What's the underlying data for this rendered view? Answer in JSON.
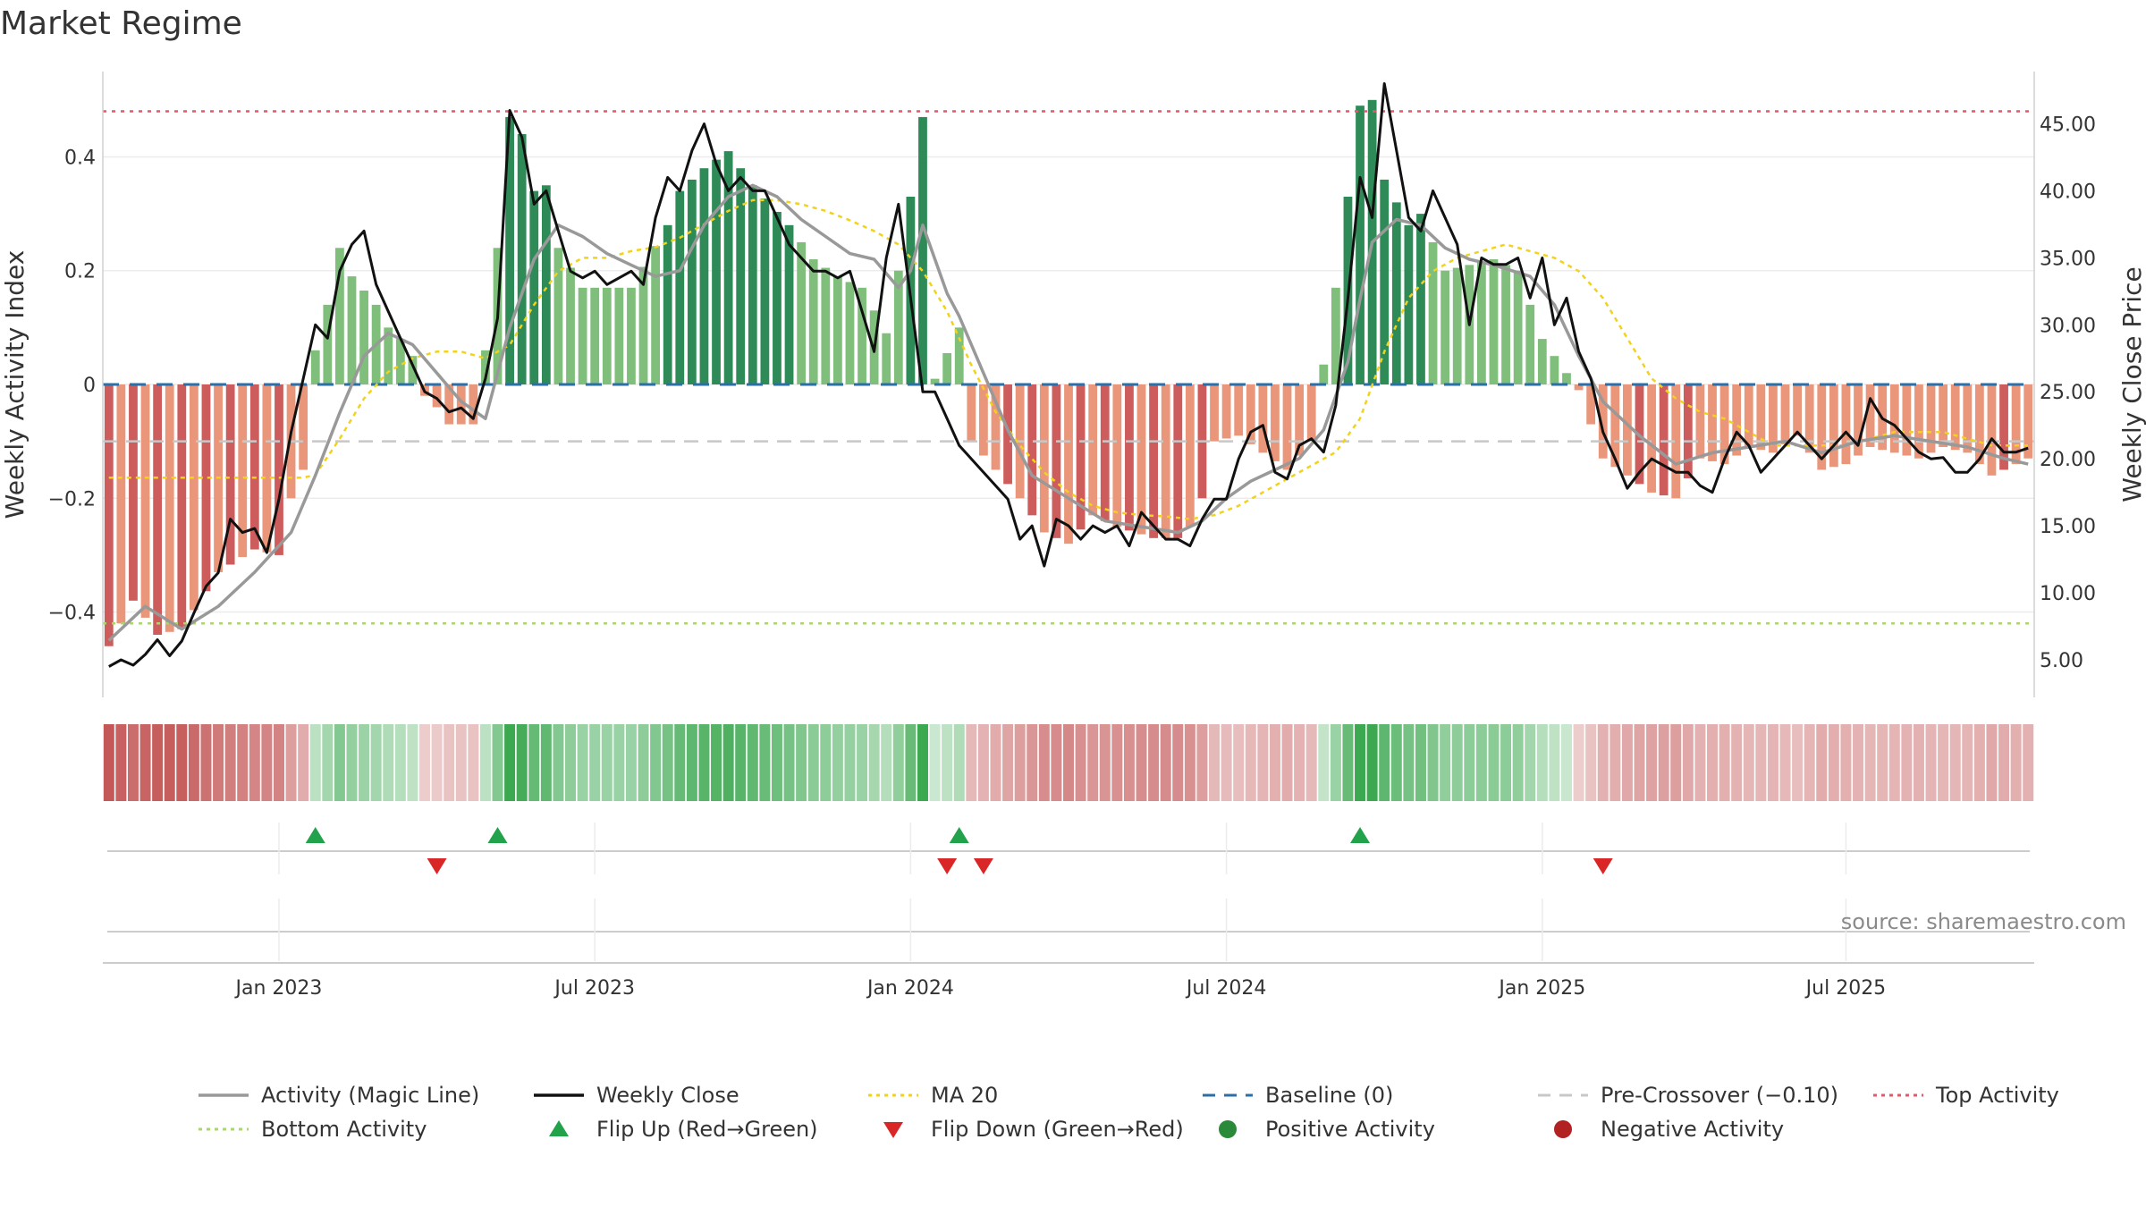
{
  "chart_data": {
    "type": "bar",
    "title": "Market Regime",
    "ylabel_left": "Weekly Activity Index",
    "ylabel_right": "Weekly Close Price",
    "source": "source: sharemaestro.com",
    "left_yticks": [
      {
        "v": 0.4,
        "label": "0.4"
      },
      {
        "v": 0.2,
        "label": "0.2"
      },
      {
        "v": 0,
        "label": "0"
      },
      {
        "v": -0.2,
        "label": "−0.2"
      },
      {
        "v": -0.4,
        "label": "−0.4"
      }
    ],
    "right_yticks": [
      "5.00",
      "10.00",
      "15.00",
      "20.00",
      "25.00",
      "30.00",
      "35.00",
      "40.00",
      "45.00"
    ],
    "x_ticks": [
      {
        "week": 14,
        "label": "Jan 2023"
      },
      {
        "week": 40,
        "label": "Jul 2023"
      },
      {
        "week": 66,
        "label": "Jan 2024"
      },
      {
        "week": 92,
        "label": "Jul 2024"
      },
      {
        "week": 118,
        "label": "Jan 2025"
      },
      {
        "week": 143,
        "label": "Jul 2025"
      }
    ],
    "ylim_left": [
      -0.55,
      0.55
    ],
    "ylim_right": [
      2.2,
      48.9
    ],
    "reference_lines": {
      "baseline": 0,
      "pre_crossover": -0.1,
      "top_activity": 0.48,
      "bottom_activity": -0.42
    },
    "activity_anchors": [
      [
        0,
        -0.46
      ],
      [
        2,
        -0.38
      ],
      [
        4,
        -0.44
      ],
      [
        6,
        -0.43
      ],
      [
        9,
        -0.33
      ],
      [
        12,
        -0.29
      ],
      [
        14,
        -0.3
      ],
      [
        15,
        -0.2
      ],
      [
        16,
        -0.15
      ],
      [
        17,
        0.06
      ],
      [
        18,
        0.14
      ],
      [
        19,
        0.24
      ],
      [
        20,
        0.19
      ],
      [
        22,
        0.14
      ],
      [
        23,
        0.1
      ],
      [
        24,
        0.08
      ],
      [
        25,
        0.05
      ],
      [
        26,
        -0.02
      ],
      [
        27,
        -0.04
      ],
      [
        28,
        -0.07
      ],
      [
        30,
        -0.07
      ],
      [
        31,
        0.06
      ],
      [
        32,
        0.24
      ],
      [
        33,
        0.47
      ],
      [
        34,
        0.44
      ],
      [
        35,
        0.34
      ],
      [
        36,
        0.35
      ],
      [
        37,
        0.24
      ],
      [
        39,
        0.17
      ],
      [
        40,
        0.17
      ],
      [
        43,
        0.17
      ],
      [
        46,
        0.28
      ],
      [
        47,
        0.34
      ],
      [
        49,
        0.38
      ],
      [
        51,
        0.41
      ],
      [
        53,
        0.35
      ],
      [
        56,
        0.28
      ],
      [
        58,
        0.22
      ],
      [
        60,
        0.19
      ],
      [
        62,
        0.17
      ],
      [
        64,
        0.09
      ],
      [
        65,
        0.2
      ],
      [
        66,
        0.33
      ],
      [
        67,
        0.47
      ],
      [
        68,
        0.01
      ],
      [
        70,
        0.1
      ],
      [
        71,
        -0.1
      ],
      [
        73,
        -0.15
      ],
      [
        75,
        -0.2
      ],
      [
        77,
        -0.26
      ],
      [
        79,
        -0.28
      ],
      [
        81,
        -0.23
      ],
      [
        83,
        -0.25
      ],
      [
        86,
        -0.27
      ],
      [
        88,
        -0.27
      ],
      [
        89,
        -0.25
      ],
      [
        90,
        -0.2
      ],
      [
        91,
        -0.1
      ],
      [
        93,
        -0.09
      ],
      [
        95,
        -0.12
      ],
      [
        97,
        -0.15
      ],
      [
        99,
        -0.1
      ],
      [
        101,
        0.17
      ],
      [
        102,
        0.33
      ],
      [
        103,
        0.49
      ],
      [
        104,
        0.5
      ],
      [
        105,
        0.36
      ],
      [
        107,
        0.28
      ],
      [
        108,
        0.3
      ],
      [
        110,
        0.2
      ],
      [
        112,
        0.21
      ],
      [
        114,
        0.22
      ],
      [
        116,
        0.2
      ],
      [
        118,
        0.08
      ],
      [
        119,
        0.05
      ],
      [
        120,
        0.02
      ],
      [
        121,
        -0.01
      ],
      [
        123,
        -0.13
      ],
      [
        125,
        -0.16
      ],
      [
        127,
        -0.19
      ],
      [
        129,
        -0.2
      ],
      [
        131,
        -0.13
      ],
      [
        133,
        -0.14
      ],
      [
        135,
        -0.11
      ],
      [
        137,
        -0.12
      ],
      [
        139,
        -0.09
      ],
      [
        141,
        -0.15
      ],
      [
        143,
        -0.14
      ],
      [
        145,
        -0.11
      ],
      [
        147,
        -0.12
      ],
      [
        149,
        -0.13
      ],
      [
        151,
        -0.11
      ],
      [
        153,
        -0.12
      ],
      [
        155,
        -0.16
      ],
      [
        157,
        -0.14
      ],
      [
        158,
        -0.13
      ]
    ],
    "magic_line_anchors": [
      [
        0,
        -0.45
      ],
      [
        3,
        -0.39
      ],
      [
        6,
        -0.43
      ],
      [
        9,
        -0.39
      ],
      [
        12,
        -0.33
      ],
      [
        15,
        -0.26
      ],
      [
        17,
        -0.16
      ],
      [
        19,
        -0.05
      ],
      [
        21,
        0.05
      ],
      [
        23,
        0.09
      ],
      [
        25,
        0.07
      ],
      [
        27,
        0.02
      ],
      [
        29,
        -0.03
      ],
      [
        31,
        -0.06
      ],
      [
        33,
        0.1
      ],
      [
        35,
        0.22
      ],
      [
        37,
        0.28
      ],
      [
        39,
        0.26
      ],
      [
        41,
        0.23
      ],
      [
        43,
        0.21
      ],
      [
        45,
        0.19
      ],
      [
        47,
        0.2
      ],
      [
        49,
        0.28
      ],
      [
        51,
        0.33
      ],
      [
        53,
        0.35
      ],
      [
        55,
        0.33
      ],
      [
        57,
        0.29
      ],
      [
        59,
        0.26
      ],
      [
        61,
        0.23
      ],
      [
        63,
        0.22
      ],
      [
        65,
        0.17
      ],
      [
        66,
        0.2
      ],
      [
        67,
        0.28
      ],
      [
        68,
        0.22
      ],
      [
        69,
        0.16
      ],
      [
        70,
        0.12
      ],
      [
        72,
        0.02
      ],
      [
        74,
        -0.08
      ],
      [
        76,
        -0.16
      ],
      [
        79,
        -0.2
      ],
      [
        82,
        -0.24
      ],
      [
        85,
        -0.25
      ],
      [
        88,
        -0.26
      ],
      [
        90,
        -0.24
      ],
      [
        92,
        -0.2
      ],
      [
        94,
        -0.17
      ],
      [
        96,
        -0.15
      ],
      [
        98,
        -0.13
      ],
      [
        100,
        -0.08
      ],
      [
        102,
        0.04
      ],
      [
        103,
        0.15
      ],
      [
        104,
        0.25
      ],
      [
        106,
        0.29
      ],
      [
        108,
        0.28
      ],
      [
        110,
        0.24
      ],
      [
        112,
        0.22
      ],
      [
        114,
        0.21
      ],
      [
        117,
        0.19
      ],
      [
        119,
        0.14
      ],
      [
        121,
        0.05
      ],
      [
        123,
        -0.03
      ],
      [
        126,
        -0.09
      ],
      [
        129,
        -0.14
      ],
      [
        132,
        -0.12
      ],
      [
        135,
        -0.11
      ],
      [
        138,
        -0.1
      ],
      [
        141,
        -0.12
      ],
      [
        144,
        -0.1
      ],
      [
        147,
        -0.09
      ],
      [
        150,
        -0.1
      ],
      [
        153,
        -0.11
      ],
      [
        156,
        -0.13
      ],
      [
        158,
        -0.14
      ]
    ],
    "weekly_close_anchors": [
      [
        0,
        4.5
      ],
      [
        1,
        5
      ],
      [
        2,
        4.6
      ],
      [
        3,
        5.4
      ],
      [
        4,
        6.5
      ],
      [
        5,
        5.3
      ],
      [
        6,
        6.4
      ],
      [
        7,
        8.5
      ],
      [
        8,
        10.5
      ],
      [
        9,
        11.5
      ],
      [
        10,
        15.5
      ],
      [
        11,
        14.5
      ],
      [
        12,
        14.8
      ],
      [
        13,
        13
      ],
      [
        14,
        17
      ],
      [
        15,
        22
      ],
      [
        16,
        26
      ],
      [
        17,
        30
      ],
      [
        18,
        29
      ],
      [
        19,
        34
      ],
      [
        20,
        36
      ],
      [
        21,
        37
      ],
      [
        22,
        33
      ],
      [
        23,
        31
      ],
      [
        24,
        29
      ],
      [
        25,
        27
      ],
      [
        26,
        25
      ],
      [
        27,
        24.5
      ],
      [
        28,
        23.5
      ],
      [
        29,
        23.8
      ],
      [
        30,
        23
      ],
      [
        31,
        26
      ],
      [
        32,
        30.5
      ],
      [
        33,
        46
      ],
      [
        34,
        44
      ],
      [
        35,
        39
      ],
      [
        36,
        40
      ],
      [
        37,
        37
      ],
      [
        38,
        34
      ],
      [
        39,
        33.5
      ],
      [
        40,
        34
      ],
      [
        41,
        33
      ],
      [
        42,
        33.5
      ],
      [
        43,
        34
      ],
      [
        44,
        33
      ],
      [
        45,
        38
      ],
      [
        46,
        41
      ],
      [
        47,
        40
      ],
      [
        48,
        43
      ],
      [
        49,
        45
      ],
      [
        50,
        42
      ],
      [
        51,
        40
      ],
      [
        52,
        41
      ],
      [
        53,
        40
      ],
      [
        54,
        40
      ],
      [
        55,
        38
      ],
      [
        56,
        36
      ],
      [
        57,
        35
      ],
      [
        58,
        34
      ],
      [
        59,
        34
      ],
      [
        60,
        33.5
      ],
      [
        61,
        34
      ],
      [
        62,
        31
      ],
      [
        63,
        28
      ],
      [
        64,
        35
      ],
      [
        65,
        39
      ],
      [
        66,
        32
      ],
      [
        67,
        25
      ],
      [
        68,
        25
      ],
      [
        69,
        23
      ],
      [
        70,
        21
      ],
      [
        71,
        20
      ],
      [
        72,
        19
      ],
      [
        73,
        18
      ],
      [
        74,
        17
      ],
      [
        75,
        14
      ],
      [
        76,
        15
      ],
      [
        77,
        12
      ],
      [
        78,
        15.5
      ],
      [
        79,
        15
      ],
      [
        80,
        14
      ],
      [
        81,
        15
      ],
      [
        82,
        14.5
      ],
      [
        83,
        15
      ],
      [
        84,
        13.5
      ],
      [
        85,
        16
      ],
      [
        86,
        15
      ],
      [
        87,
        14
      ],
      [
        88,
        14
      ],
      [
        89,
        13.5
      ],
      [
        90,
        15.5
      ],
      [
        91,
        17
      ],
      [
        92,
        17
      ],
      [
        93,
        20
      ],
      [
        94,
        22
      ],
      [
        95,
        22.5
      ],
      [
        96,
        19
      ],
      [
        97,
        18.5
      ],
      [
        98,
        21
      ],
      [
        99,
        21.5
      ],
      [
        100,
        20.5
      ],
      [
        101,
        24
      ],
      [
        102,
        32
      ],
      [
        103,
        41
      ],
      [
        104,
        38
      ],
      [
        105,
        48
      ],
      [
        106,
        43
      ],
      [
        107,
        38
      ],
      [
        108,
        37
      ],
      [
        109,
        40
      ],
      [
        110,
        38
      ],
      [
        111,
        36
      ],
      [
        112,
        30
      ],
      [
        113,
        35
      ],
      [
        114,
        34.5
      ],
      [
        115,
        34.5
      ],
      [
        116,
        35
      ],
      [
        117,
        32
      ],
      [
        118,
        35
      ],
      [
        119,
        30
      ],
      [
        120,
        32
      ],
      [
        121,
        28
      ],
      [
        122,
        26
      ],
      [
        123,
        22
      ],
      [
        124,
        20
      ],
      [
        125,
        17.8
      ],
      [
        126,
        19
      ],
      [
        127,
        20
      ],
      [
        128,
        19.5
      ],
      [
        129,
        19
      ],
      [
        130,
        19
      ],
      [
        131,
        18
      ],
      [
        132,
        17.5
      ],
      [
        133,
        20
      ],
      [
        134,
        22
      ],
      [
        135,
        21
      ],
      [
        136,
        19
      ],
      [
        137,
        20
      ],
      [
        138,
        21
      ],
      [
        139,
        22
      ],
      [
        140,
        21
      ],
      [
        141,
        20
      ],
      [
        142,
        21
      ],
      [
        143,
        22
      ],
      [
        144,
        21
      ],
      [
        145,
        24.5
      ],
      [
        146,
        23
      ],
      [
        147,
        22.5
      ],
      [
        148,
        21.5
      ],
      [
        149,
        20.5
      ],
      [
        150,
        20
      ],
      [
        151,
        20.1
      ],
      [
        152,
        19
      ],
      [
        153,
        19
      ],
      [
        154,
        20
      ],
      [
        155,
        21.5
      ],
      [
        156,
        20.5
      ],
      [
        157,
        20.5
      ],
      [
        158,
        20.8
      ]
    ],
    "ma20_anchors": [
      [
        0,
        18.6
      ],
      [
        14,
        18.6
      ],
      [
        16,
        18.6
      ],
      [
        17,
        18.8
      ],
      [
        19,
        21.5
      ],
      [
        21,
        24.5
      ],
      [
        23,
        26.5
      ],
      [
        25,
        27.5
      ],
      [
        27,
        28
      ],
      [
        29,
        28
      ],
      [
        31,
        27.5
      ],
      [
        33,
        28.5
      ],
      [
        35,
        31.5
      ],
      [
        37,
        34
      ],
      [
        39,
        35
      ],
      [
        41,
        35
      ],
      [
        43,
        35.5
      ],
      [
        45,
        35.8
      ],
      [
        47,
        36.5
      ],
      [
        49,
        37.5
      ],
      [
        51,
        38.5
      ],
      [
        53,
        39.3
      ],
      [
        55,
        39.3
      ],
      [
        57,
        39
      ],
      [
        59,
        38.5
      ],
      [
        61,
        37.8
      ],
      [
        63,
        37
      ],
      [
        65,
        36
      ],
      [
        67,
        34
      ],
      [
        69,
        31
      ],
      [
        71,
        27
      ],
      [
        73,
        23.5
      ],
      [
        75,
        21
      ],
      [
        77,
        19
      ],
      [
        79,
        17.5
      ],
      [
        81,
        16.5
      ],
      [
        83,
        16
      ],
      [
        85,
        15.8
      ],
      [
        87,
        15.7
      ],
      [
        89,
        15.5
      ],
      [
        91,
        15.8
      ],
      [
        93,
        16.5
      ],
      [
        95,
        17.5
      ],
      [
        97,
        18.5
      ],
      [
        99,
        19.5
      ],
      [
        101,
        20.5
      ],
      [
        103,
        23
      ],
      [
        105,
        28
      ],
      [
        107,
        32
      ],
      [
        109,
        34
      ],
      [
        111,
        35
      ],
      [
        113,
        35.5
      ],
      [
        115,
        36
      ],
      [
        117,
        35.5
      ],
      [
        119,
        35
      ],
      [
        121,
        34
      ],
      [
        123,
        32
      ],
      [
        125,
        29
      ],
      [
        127,
        26
      ],
      [
        129,
        24.5
      ],
      [
        131,
        23.5
      ],
      [
        133,
        23
      ],
      [
        135,
        22
      ],
      [
        137,
        21
      ],
      [
        139,
        21
      ],
      [
        141,
        21
      ],
      [
        143,
        21
      ],
      [
        145,
        21.5
      ],
      [
        147,
        22
      ],
      [
        149,
        22
      ],
      [
        151,
        22
      ],
      [
        153,
        21.5
      ],
      [
        155,
        21
      ],
      [
        157,
        21
      ],
      [
        158,
        21
      ]
    ],
    "flip_up_weeks": [
      17,
      32,
      70,
      103
    ],
    "flip_down_weeks": [
      27,
      69,
      72,
      123
    ],
    "legend": [
      {
        "label": "Activity (Magic Line)",
        "kind": "line",
        "color": "#999999"
      },
      {
        "label": "Weekly Close",
        "kind": "line",
        "color": "#111111"
      },
      {
        "label": "MA 20",
        "kind": "dotted",
        "color": "#f2d21a"
      },
      {
        "label": "Baseline (0)",
        "kind": "dashed",
        "color": "#2b6ea8"
      },
      {
        "label": "Pre-Crossover (−0.10)",
        "kind": "dashed",
        "color": "#c8c8c8"
      },
      {
        "label": "Top Activity",
        "kind": "dotted",
        "color": "#e05a6a"
      },
      {
        "label": "Bottom Activity",
        "kind": "dotted",
        "color": "#a8d86a"
      },
      {
        "label": "Flip Up (Red→Green)",
        "kind": "tri-up",
        "color": "#22a24a"
      },
      {
        "label": "Flip Down (Green→Red)",
        "kind": "tri-down",
        "color": "#d92626"
      },
      {
        "label": "Positive Activity",
        "kind": "dot",
        "color": "#2a8a3a"
      },
      {
        "label": "Negative Activity",
        "kind": "dot",
        "color": "#b22222"
      }
    ],
    "colors": {
      "pos_dark": "#2e8b57",
      "pos_light": "#7fbf7b",
      "neg_dark": "#cd5c5c",
      "neg_light": "#e9967a"
    }
  }
}
